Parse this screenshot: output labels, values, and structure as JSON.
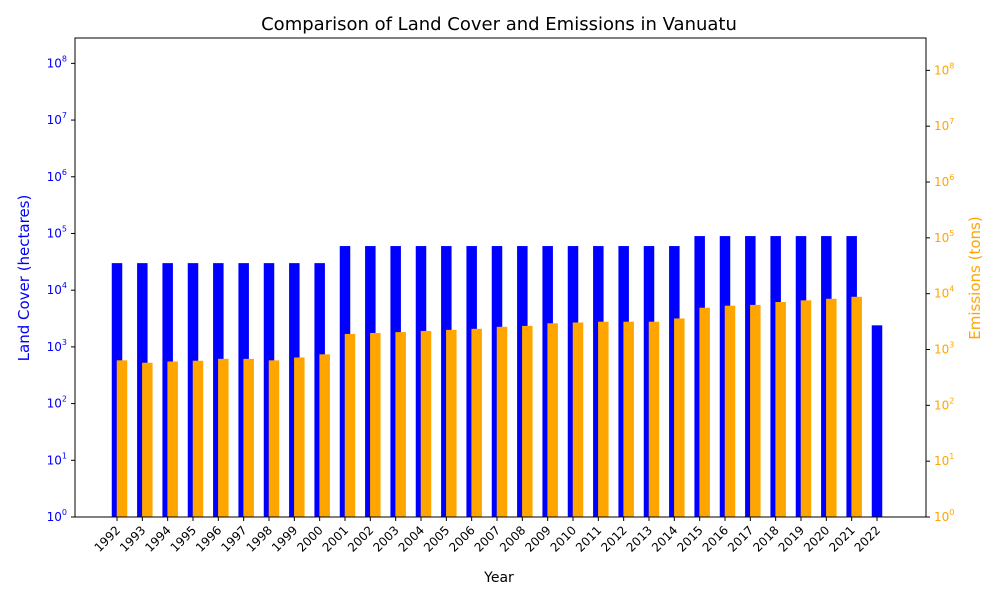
{
  "chart_data": {
    "type": "bar",
    "title": "Comparison of Land Cover and Emissions in Vanuatu",
    "xlabel": "Year",
    "ylabel_left": "Land Cover (hectares)",
    "ylabel_right": "Emissions (tons)",
    "yscale": "log",
    "ylim_left": [
      1,
      280000000
    ],
    "ylim_right": [
      1,
      380000000
    ],
    "y_ticks": [
      "10^0",
      "10^1",
      "10^2",
      "10^3",
      "10^4",
      "10^5",
      "10^6",
      "10^7",
      "10^8"
    ],
    "grid": false,
    "categories": [
      "1992",
      "1993",
      "1994",
      "1995",
      "1996",
      "1997",
      "1998",
      "1999",
      "2000",
      "2001",
      "2002",
      "2003",
      "2004",
      "2005",
      "2006",
      "2007",
      "2008",
      "2009",
      "2010",
      "2011",
      "2012",
      "2013",
      "2014",
      "2015",
      "2016",
      "2017",
      "2018",
      "2019",
      "2020",
      "2021",
      "2022"
    ],
    "series": [
      {
        "name": "Land Cover (hectares)",
        "axis": "left",
        "color": "#0000ff",
        "values": [
          30000,
          30000,
          30000,
          30000,
          30000,
          30000,
          30000,
          30000,
          30000,
          60000,
          60000,
          60000,
          60000,
          60000,
          60000,
          60000,
          60000,
          60000,
          60000,
          60000,
          60000,
          60000,
          60000,
          90000,
          90000,
          90000,
          90000,
          90000,
          90000,
          90000,
          2400
        ]
      },
      {
        "name": "Emissions (tons)",
        "axis": "right",
        "color": "#ffa500",
        "values": [
          640,
          580,
          610,
          630,
          680,
          680,
          640,
          720,
          820,
          1900,
          1980,
          2050,
          2150,
          2250,
          2350,
          2550,
          2650,
          2950,
          3050,
          3150,
          3150,
          3150,
          3600,
          5600,
          6100,
          6300,
          7100,
          7600,
          8100,
          8800,
          null
        ]
      }
    ]
  }
}
